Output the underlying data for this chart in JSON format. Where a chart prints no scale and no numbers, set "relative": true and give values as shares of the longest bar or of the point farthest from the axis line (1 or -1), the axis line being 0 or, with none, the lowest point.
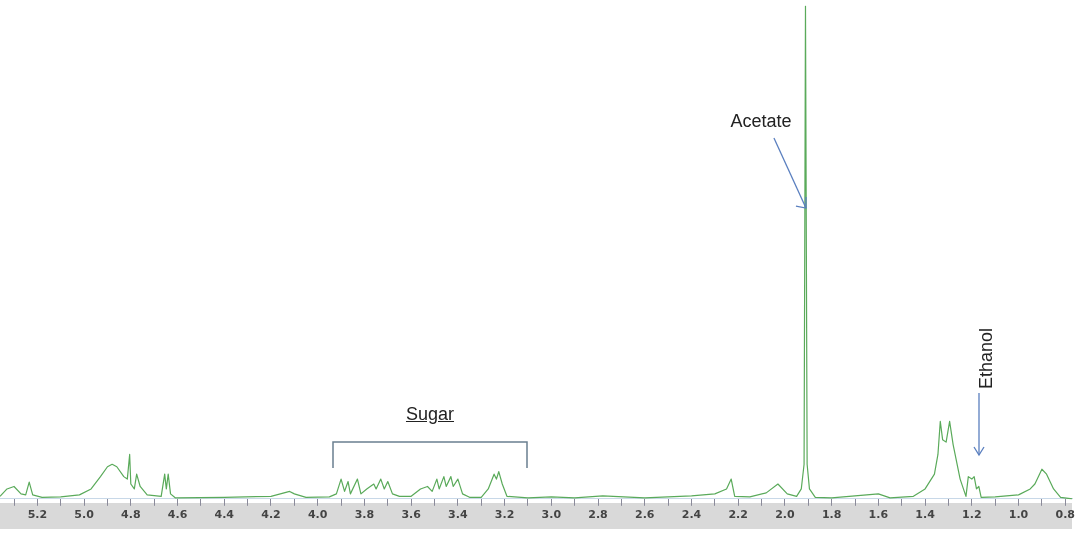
{
  "chart_data": {
    "type": "line",
    "relative": true,
    "grid": false,
    "legend": false,
    "marker": "none",
    "line_style": "solid",
    "xlim": [
      5.36,
      0.77
    ],
    "xticks": [
      {
        "value": 5.3,
        "label": null
      },
      {
        "value": 5.2,
        "label": "5.2"
      },
      {
        "value": 5.1,
        "label": null
      },
      {
        "value": 5,
        "label": "5.0"
      },
      {
        "value": 4.9,
        "label": null
      },
      {
        "value": 4.8,
        "label": "4.8"
      },
      {
        "value": 4.7,
        "label": null
      },
      {
        "value": 4.6,
        "label": "4.6"
      },
      {
        "value": 4.5,
        "label": null
      },
      {
        "value": 4.4,
        "label": "4.4"
      },
      {
        "value": 4.3,
        "label": null
      },
      {
        "value": 4.2,
        "label": "4.2"
      },
      {
        "value": 4.1,
        "label": null
      },
      {
        "value": 4,
        "label": "4.0"
      },
      {
        "value": 3.9,
        "label": null
      },
      {
        "value": 3.8,
        "label": "3.8"
      },
      {
        "value": 3.7,
        "label": null
      },
      {
        "value": 3.6,
        "label": "3.6"
      },
      {
        "value": 3.5,
        "label": null
      },
      {
        "value": 3.4,
        "label": "3.4"
      },
      {
        "value": 3.3,
        "label": null
      },
      {
        "value": 3.2,
        "label": "3.2"
      },
      {
        "value": 3.1,
        "label": null
      },
      {
        "value": 3,
        "label": "3.0"
      },
      {
        "value": 2.9,
        "label": null
      },
      {
        "value": 2.8,
        "label": "2.8"
      },
      {
        "value": 2.7,
        "label": null
      },
      {
        "value": 2.6,
        "label": "2.6"
      },
      {
        "value": 2.5,
        "label": null
      },
      {
        "value": 2.4,
        "label": "2.4"
      },
      {
        "value": 2.3,
        "label": null
      },
      {
        "value": 2.2,
        "label": "2.2"
      },
      {
        "value": 2.1,
        "label": null
      },
      {
        "value": 2,
        "label": "2.0"
      },
      {
        "value": 1.9,
        "label": null
      },
      {
        "value": 1.8,
        "label": "1.8"
      },
      {
        "value": 1.7,
        "label": null
      },
      {
        "value": 1.6,
        "label": "1.6"
      },
      {
        "value": 1.5,
        "label": null
      },
      {
        "value": 1.4,
        "label": "1.4"
      },
      {
        "value": 1.3,
        "label": null
      },
      {
        "value": 1.2,
        "label": "1.2"
      },
      {
        "value": 1.1,
        "label": null
      },
      {
        "value": 1,
        "label": "1.0"
      },
      {
        "value": 0.9,
        "label": null
      },
      {
        "value": 0.8,
        "label": "0.8"
      }
    ],
    "annotations": [
      {
        "text": "Acetate",
        "x": 1.91,
        "y": 0.59
      },
      "Sugar",
      "Ethanol"
    ],
    "series": [
      {
        "color": "#5aaa5a",
        "x": [
          5.36,
          5.33,
          5.3,
          5.27,
          5.25,
          5.235,
          5.22,
          5.18,
          5.1,
          5.02,
          4.97,
          4.93,
          4.9,
          4.88,
          4.86,
          4.83,
          4.815,
          4.805,
          4.8,
          4.785,
          4.775,
          4.76,
          4.73,
          4.67,
          4.655,
          4.648,
          4.64,
          4.63,
          4.61,
          4.4,
          4.2,
          4.12,
          4.1,
          4.05,
          3.95,
          3.92,
          3.9,
          3.885,
          3.87,
          3.86,
          3.83,
          3.815,
          3.79,
          3.76,
          3.75,
          3.73,
          3.715,
          3.7,
          3.68,
          3.65,
          3.6,
          3.56,
          3.53,
          3.51,
          3.49,
          3.48,
          3.46,
          3.45,
          3.43,
          3.42,
          3.4,
          3.38,
          3.35,
          3.3,
          3.27,
          3.245,
          3.235,
          3.225,
          3.21,
          3.19,
          3.1,
          3.0,
          2.9,
          2.78,
          2.6,
          2.4,
          2.3,
          2.25,
          2.23,
          2.215,
          2.15,
          2.08,
          2.03,
          1.99,
          1.95,
          1.93,
          1.918,
          1.912,
          1.905,
          1.895,
          1.87,
          1.8,
          1.6,
          1.55,
          1.45,
          1.4,
          1.36,
          1.345,
          1.335,
          1.325,
          1.31,
          1.295,
          1.28,
          1.25,
          1.225,
          1.215,
          1.2,
          1.19,
          1.18,
          1.17,
          1.16,
          1.1,
          1.0,
          0.95,
          0.93,
          0.9,
          0.88,
          0.85,
          0.82,
          0.77
        ],
        "values": [
          0.005,
          0.02,
          0.025,
          0.01,
          0.008,
          0.034,
          0.008,
          0.003,
          0.004,
          0.008,
          0.02,
          0.045,
          0.065,
          0.07,
          0.065,
          0.045,
          0.04,
          0.09,
          0.03,
          0.02,
          0.05,
          0.025,
          0.008,
          0.005,
          0.05,
          0.02,
          0.05,
          0.01,
          0.002,
          0.003,
          0.005,
          0.015,
          0.01,
          0.003,
          0.004,
          0.01,
          0.04,
          0.015,
          0.035,
          0.01,
          0.04,
          0.01,
          0.02,
          0.03,
          0.02,
          0.04,
          0.02,
          0.035,
          0.01,
          0.005,
          0.005,
          0.02,
          0.025,
          0.015,
          0.04,
          0.02,
          0.045,
          0.025,
          0.045,
          0.025,
          0.04,
          0.01,
          0.003,
          0.003,
          0.02,
          0.05,
          0.04,
          0.055,
          0.03,
          0.005,
          0.002,
          0.004,
          0.002,
          0.006,
          0.002,
          0.006,
          0.01,
          0.02,
          0.04,
          0.005,
          0.004,
          0.012,
          0.03,
          0.01,
          0.005,
          0.02,
          0.07,
          1,
          0.07,
          0.02,
          0.003,
          0.002,
          0.01,
          0.002,
          0.005,
          0.02,
          0.05,
          0.09,
          0.157,
          0.12,
          0.115,
          0.157,
          0.11,
          0.04,
          0.005,
          0.045,
          0.04,
          0.045,
          0.02,
          0.025,
          0.003,
          0.004,
          0.008,
          0.02,
          0.03,
          0.06,
          0.05,
          0.02,
          0.003,
          0
        ]
      }
    ]
  }
}
